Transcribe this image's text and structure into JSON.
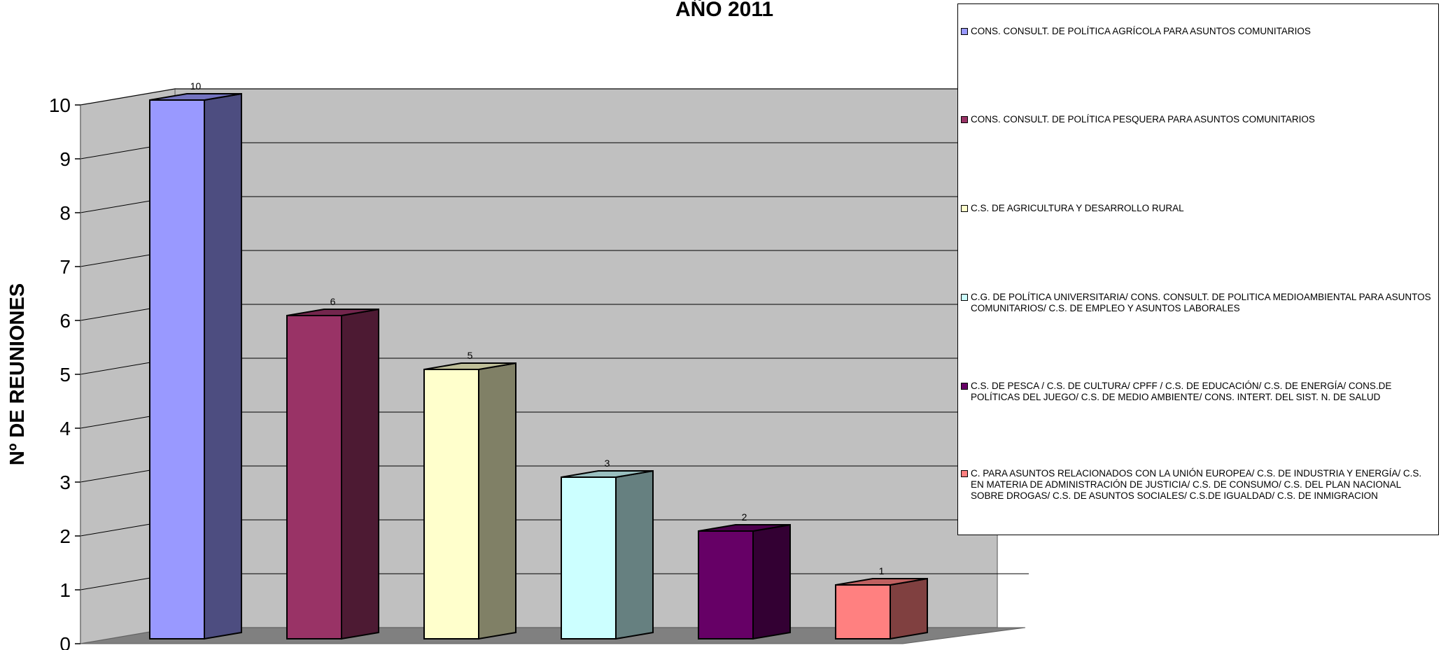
{
  "chart_data": {
    "type": "bar",
    "title": "AÑO 2011",
    "ylabel": "Nº DE REUNIONES",
    "ylim": [
      0,
      10
    ],
    "yticks": [
      "0",
      "1",
      "2",
      "3",
      "4",
      "5",
      "6",
      "7",
      "8",
      "9",
      "10"
    ],
    "grid": true,
    "legend_position": "right",
    "series": [
      {
        "name": "CONS. CONSULT. DE POLÍTICA AGRÍCOLA PARA ASUNTOS COMUNITARIOS",
        "value": 10,
        "label": "10",
        "color": "#9999FF",
        "side_color": "#4D4D80",
        "top_color": "#7373BF"
      },
      {
        "name": "CONS. CONSULT. DE POLÍTICA PESQUERA PARA ASUNTOS COMUNITARIOS",
        "value": 6,
        "label": "6",
        "color": "#993366",
        "side_color": "#4D1A33",
        "top_color": "#73264D"
      },
      {
        "name": "C.S. DE AGRICULTURA Y DESARROLLO RURAL",
        "value": 5,
        "label": "5",
        "color": "#FFFFCC",
        "side_color": "#808066",
        "top_color": "#BFBF99"
      },
      {
        "name": "C.G. DE POLÍTICA UNIVERSITARIA/ CONS. CONSULT. DE POLITICA MEDIOAMBIENTAL PARA ASUNTOS COMUNITARIOS/ C.S. DE EMPLEO Y ASUNTOS LABORALES",
        "value": 3,
        "label": "3",
        "color": "#CCFFFF",
        "side_color": "#668080",
        "top_color": "#99BFBF"
      },
      {
        "name": "C.S. DE PESCA / C.S. DE CULTURA/ CPFF / C.S. DE EDUCACIÓN/ C.S. DE ENERGÍA/ CONS.DE POLÍTICAS DEL JUEGO/ C.S. DE MEDIO AMBIENTE/ CONS. INTERT. DEL SIST. N. DE SALUD",
        "value": 2,
        "label": "2",
        "color": "#660066",
        "side_color": "#330033",
        "top_color": "#4D004D"
      },
      {
        "name": "C. PARA ASUNTOS RELACIONADOS CON LA UNIÓN EUROPEA/ C.S. DE INDUSTRIA Y ENERGÍA/ C.S. EN MATERIA DE ADMINISTRACIÓN DE JUSTICIA/ C.S. DE CONSUMO/ C.S. DEL PLAN NACIONAL SOBRE DROGAS/ C.S. DE ASUNTOS SOCIALES/ C.S.DE IGUALDAD/ C.S. DE INMIGRACION",
        "value": 1,
        "label": "1",
        "color": "#FF8080",
        "side_color": "#804040",
        "top_color": "#BF6060"
      }
    ],
    "colors": {
      "wall": "#C0C0C0",
      "floor": "#808080",
      "side_wall": "#C0C0C0"
    }
  }
}
